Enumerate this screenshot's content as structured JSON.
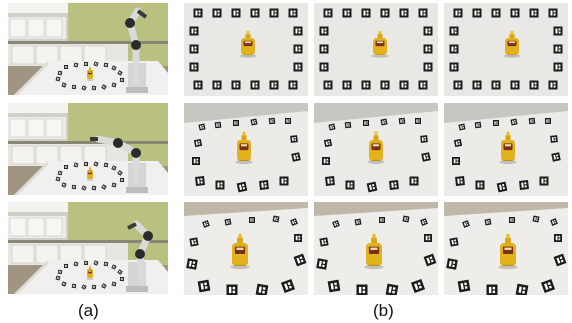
{
  "figure": {
    "caption_left": "(a)",
    "caption_right": "(b)"
  },
  "robot_scenes": [
    {
      "pose": "upright"
    },
    {
      "pose": "reaching"
    },
    {
      "pose": "folded"
    }
  ],
  "camera_views": [
    {
      "row": 1,
      "col": 1,
      "view": "top-down"
    },
    {
      "row": 1,
      "col": 2,
      "view": "top-down"
    },
    {
      "row": 1,
      "col": 3,
      "view": "top-down"
    },
    {
      "row": 2,
      "col": 1,
      "view": "oblique"
    },
    {
      "row": 2,
      "col": 2,
      "view": "oblique"
    },
    {
      "row": 2,
      "col": 3,
      "view": "oblique"
    },
    {
      "row": 3,
      "col": 1,
      "view": "low-angle"
    },
    {
      "row": 3,
      "col": 2,
      "view": "low-angle"
    },
    {
      "row": 3,
      "col": 3,
      "view": "low-angle"
    }
  ],
  "colors": {
    "mustard": "#e2b21c",
    "table_cloth": "#f1f0ee",
    "marker": "#1b1b1b",
    "wall": "#b9c080",
    "cabinet": "#e8e6e0"
  }
}
